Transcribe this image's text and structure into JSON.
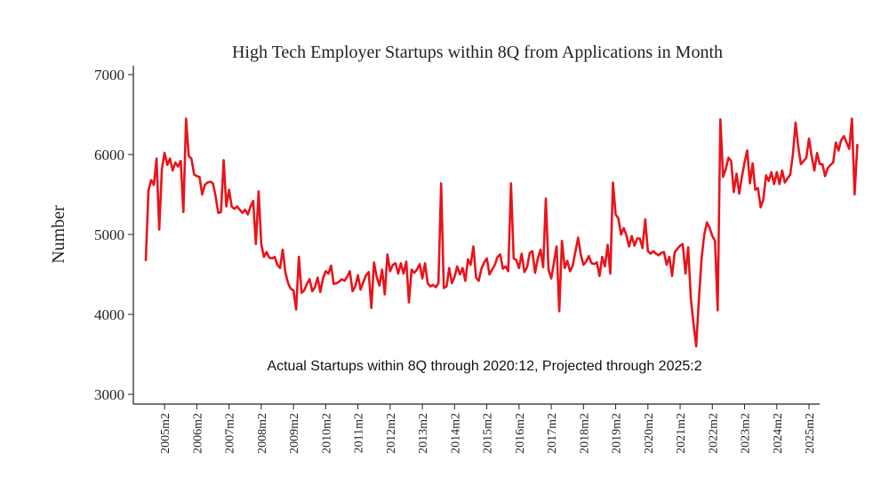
{
  "chart_data": {
    "type": "line",
    "title": "High Tech Employer Startups within 8Q from Applications in Month",
    "ylabel": "Number",
    "xlabel": "",
    "ylim": [
      3000,
      7000
    ],
    "yticks": [
      3000,
      4000,
      5000,
      6000,
      7000
    ],
    "xticks": [
      "2005m2",
      "2006m2",
      "2007m2",
      "2008m2",
      "2009m2",
      "2010m2",
      "2011m2",
      "2012m2",
      "2013m2",
      "2014m2",
      "2015m2",
      "2016m2",
      "2017m2",
      "2018m2",
      "2019m2",
      "2020m2",
      "2021m2",
      "2022m2",
      "2023m2",
      "2024m2",
      "2025m2"
    ],
    "x_start": "2004m7",
    "x_end": "2025m2",
    "grid": false,
    "annotation": "Actual Startups within 8Q through 2020:12, Projected through 2025:2",
    "series_color": "#e8141b",
    "series": [
      {
        "values": [
          4680,
          5550,
          5680,
          5620,
          5950,
          5060,
          5820,
          6020,
          5870,
          5950,
          5800,
          5900,
          5850,
          5920,
          5280,
          6450,
          5980,
          5950,
          5750,
          5730,
          5720,
          5500,
          5620,
          5650,
          5660,
          5640,
          5480,
          5270,
          5280,
          5930,
          5350,
          5560,
          5350,
          5320,
          5350,
          5310,
          5270,
          5310,
          5250,
          5350,
          5420,
          4880,
          5540,
          4880,
          4720,
          4780,
          4710,
          4700,
          4720,
          4620,
          4580,
          4810,
          4520,
          4390,
          4320,
          4300,
          4060,
          4720,
          4270,
          4300,
          4380,
          4440,
          4290,
          4340,
          4460,
          4280,
          4450,
          4540,
          4510,
          4610,
          4380,
          4390,
          4410,
          4440,
          4420,
          4470,
          4540,
          4290,
          4350,
          4490,
          4310,
          4400,
          4490,
          4530,
          4080,
          4650,
          4470,
          4360,
          4560,
          4250,
          4750,
          4540,
          4620,
          4640,
          4510,
          4640,
          4510,
          4660,
          4150,
          4560,
          4520,
          4560,
          4630,
          4450,
          4640,
          4390,
          4350,
          4370,
          4340,
          4390,
          5640,
          4330,
          4350,
          4580,
          4390,
          4470,
          4600,
          4500,
          4580,
          4420,
          4690,
          4620,
          4850,
          4460,
          4420,
          4570,
          4650,
          4700,
          4500,
          4560,
          4620,
          4720,
          4750,
          4570,
          4600,
          4540,
          5640,
          4700,
          4680,
          4580,
          4760,
          4530,
          4590,
          4770,
          4790,
          4520,
          4700,
          4810,
          4590,
          5450,
          4560,
          4450,
          4650,
          4850,
          4040,
          4920,
          4580,
          4670,
          4540,
          4610,
          4780,
          4960,
          4750,
          4620,
          4660,
          4730,
          4640,
          4630,
          4650,
          4480,
          4720,
          4600,
          4870,
          4510,
          5650,
          5250,
          5200,
          5000,
          5080,
          4990,
          4850,
          4980,
          4860,
          4950,
          4950,
          4830,
          5190,
          4790,
          4760,
          4790,
          4760,
          4740,
          4770,
          4780,
          4620,
          4720,
          4480,
          4780,
          4820,
          4860,
          4880,
          4510,
          4840,
          4200,
          3880,
          3600,
          4200,
          4700,
          5000,
          5150,
          5080,
          4980,
          4920,
          4050,
          6440,
          5720,
          5820,
          5960,
          5920,
          5530,
          5760,
          5510,
          5720,
          5900,
          6050,
          5640,
          5890,
          5560,
          5580,
          5340,
          5440,
          5740,
          5670,
          5780,
          5630,
          5780,
          5630,
          5800,
          5650,
          5700,
          5750,
          6000,
          6400,
          6100,
          5880,
          5920,
          5960,
          6200,
          5980,
          5800,
          6020,
          5880,
          5880,
          5730,
          5830,
          5870,
          5900,
          6150,
          6050,
          6180,
          6230,
          6150,
          6070,
          6450,
          5500,
          6120
        ]
      }
    ]
  }
}
